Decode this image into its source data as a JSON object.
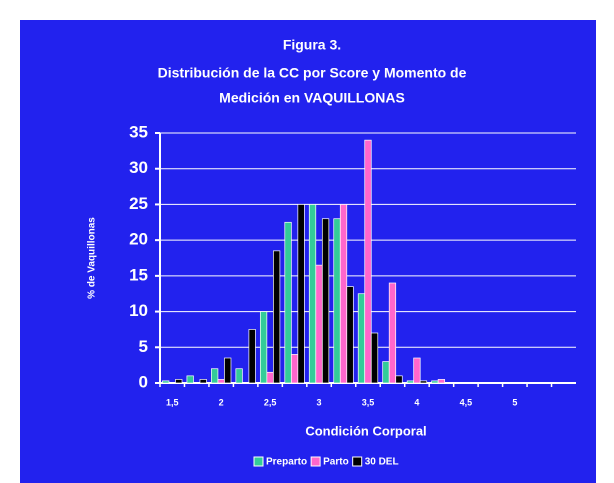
{
  "chart_data": {
    "type": "bar",
    "title": [
      "Figura 3.",
      "Distribución de la CC por Score y Momento de",
      "Medición en VAQUILLONAS"
    ],
    "y_label": "% de Vaquillonas",
    "x_label": "Condición Corporal",
    "categories": [
      "1,5",
      null,
      "2",
      null,
      "2,5",
      null,
      "3",
      null,
      "3,5",
      null,
      "4",
      null,
      "4,5",
      null,
      "5",
      null,
      null
    ],
    "series": [
      {
        "name": "Preparto",
        "color": "#33cc99",
        "values": [
          0.3,
          1,
          2,
          2,
          10,
          22.5,
          25,
          23,
          12.5,
          3,
          0.3,
          0.3,
          0,
          0,
          0,
          0,
          0
        ]
      },
      {
        "name": "Parto",
        "color": "#ff66cc",
        "values": [
          0,
          0,
          0.5,
          0,
          1.5,
          4,
          16.5,
          25,
          34,
          14,
          3.5,
          0.5,
          0,
          0,
          0,
          0,
          0
        ]
      },
      {
        "name": "30 DEL",
        "color": "#000000",
        "values": [
          0.5,
          0.5,
          3.5,
          7.5,
          18.5,
          25,
          23,
          13.5,
          7,
          1,
          0.3,
          0,
          0,
          0,
          0,
          0,
          0
        ]
      }
    ],
    "ylim": [
      0,
      35
    ],
    "yticks": [
      0,
      5,
      10,
      15,
      20,
      25,
      30,
      35
    ],
    "grid": true,
    "legend": "bottom"
  }
}
